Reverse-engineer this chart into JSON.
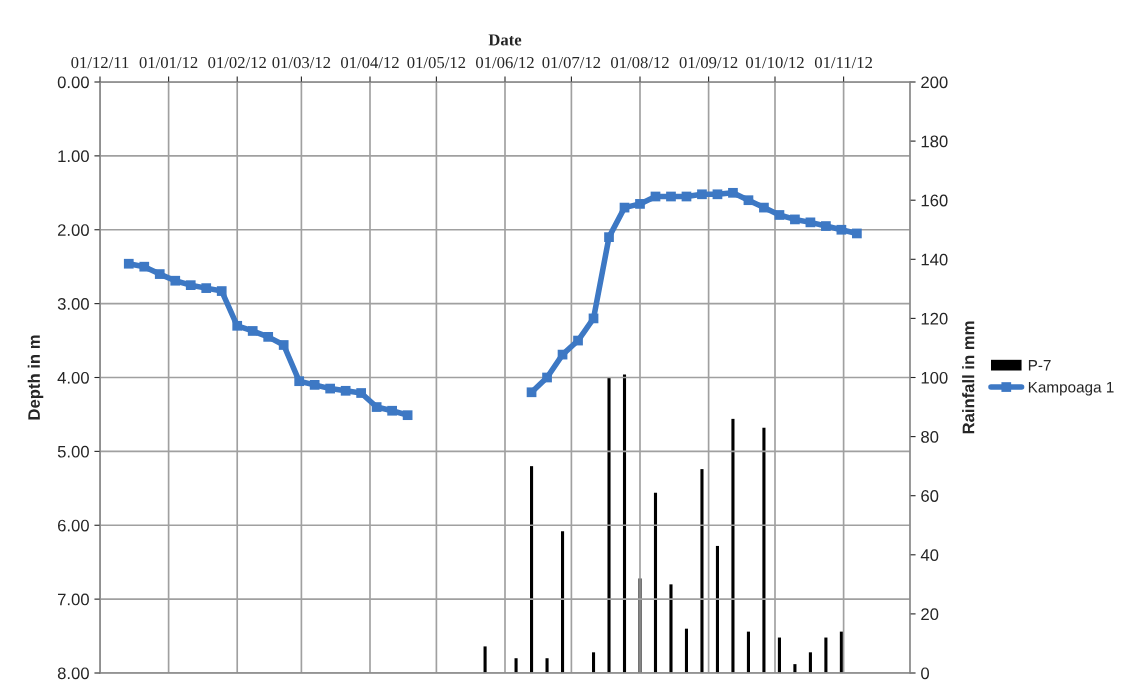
{
  "chart_data": {
    "type": "line",
    "xlabel": "Date",
    "ylabel": "Depth in m",
    "y2label": "Rainfall in mm",
    "xlim": [
      "2011-12-01",
      "2012-12-01"
    ],
    "xticks": [
      {
        "value": "2011-12-01",
        "label": "01/12/11"
      },
      {
        "value": "2012-01-01",
        "label": "01/01/12"
      },
      {
        "value": "2012-02-01",
        "label": "01/02/12"
      },
      {
        "value": "2012-03-01",
        "label": "01/03/12"
      },
      {
        "value": "2012-04-01",
        "label": "01/04/12"
      },
      {
        "value": "2012-05-01",
        "label": "01/05/12"
      },
      {
        "value": "2012-06-01",
        "label": "01/06/12"
      },
      {
        "value": "2012-07-01",
        "label": "01/07/12"
      },
      {
        "value": "2012-08-01",
        "label": "01/08/12"
      },
      {
        "value": "2012-09-01",
        "label": "01/09/12"
      },
      {
        "value": "2012-10-01",
        "label": "01/10/12"
      },
      {
        "value": "2012-11-01",
        "label": "01/11/12"
      }
    ],
    "ylim": [
      8,
      0
    ],
    "yticks": [
      {
        "value": 0,
        "label": "0.00"
      },
      {
        "value": 1,
        "label": "1.00"
      },
      {
        "value": 2,
        "label": "2.00"
      },
      {
        "value": 3,
        "label": "3.00"
      },
      {
        "value": 4,
        "label": "4.00"
      },
      {
        "value": 5,
        "label": "5.00"
      },
      {
        "value": 6,
        "label": "6.00"
      },
      {
        "value": 7,
        "label": "7.00"
      },
      {
        "value": 8,
        "label": "8.00"
      }
    ],
    "y2lim": [
      0,
      200
    ],
    "y2ticks": [
      0,
      20,
      40,
      60,
      80,
      100,
      120,
      140,
      160,
      180,
      200
    ],
    "grid": true,
    "legend": "right",
    "series": [
      {
        "name": "P-7",
        "type": "bar",
        "axis": "y2",
        "color": "#000000",
        "x": [
          "2012-05-23",
          "2012-06-06",
          "2012-06-13",
          "2012-06-20",
          "2012-06-27",
          "2012-07-11",
          "2012-07-18",
          "2012-07-25",
          "2012-08-01",
          "2012-08-08",
          "2012-08-15",
          "2012-08-22",
          "2012-08-29",
          "2012-09-05",
          "2012-09-12",
          "2012-09-19",
          "2012-09-26",
          "2012-10-03",
          "2012-10-10",
          "2012-10-17",
          "2012-10-24",
          "2012-10-31"
        ],
        "values": [
          9,
          5,
          70,
          5,
          48,
          7,
          100,
          101,
          32,
          61,
          30,
          15,
          69,
          43,
          86,
          14,
          83,
          12,
          3,
          7,
          12,
          14
        ]
      },
      {
        "name": "Kampoaga 1",
        "color": "#3d78c4",
        "marker": "square",
        "x": [
          "2011-12-14",
          "2011-12-21",
          "2011-12-28",
          "2012-01-04",
          "2012-01-11",
          "2012-01-18",
          "2012-01-25",
          "2012-02-01",
          "2012-02-08",
          "2012-02-15",
          "2012-02-22",
          "2012-02-29",
          "2012-03-07",
          "2012-03-14",
          "2012-03-21",
          "2012-03-28",
          "2012-04-04",
          "2012-04-11",
          "2012-04-18",
          "2012-04-25",
          "2012-05-02",
          "2012-05-09",
          "2012-05-16",
          "2012-05-23",
          "2012-05-30",
          "2012-06-06",
          "2012-06-13",
          "2012-06-20",
          "2012-06-27",
          "2012-07-04",
          "2012-07-11",
          "2012-07-18",
          "2012-07-25",
          "2012-08-01",
          "2012-08-08",
          "2012-08-15",
          "2012-08-22",
          "2012-08-29",
          "2012-09-05",
          "2012-09-12",
          "2012-09-19",
          "2012-09-26",
          "2012-10-03",
          "2012-10-10",
          "2012-10-17",
          "2012-10-24",
          "2012-10-31",
          "2012-11-07"
        ],
        "values": [
          2.46,
          2.5,
          2.6,
          2.69,
          2.75,
          2.79,
          2.83,
          3.3,
          3.37,
          3.45,
          3.56,
          4.05,
          4.1,
          4.15,
          4.18,
          4.21,
          4.4,
          4.45,
          4.51,
          null,
          null,
          null,
          null,
          null,
          null,
          null,
          4.2,
          4.0,
          3.69,
          3.5,
          3.2,
          2.1,
          1.7,
          1.65,
          1.55,
          1.55,
          1.55,
          1.52,
          1.52,
          1.5,
          1.6,
          1.7,
          1.8,
          1.86,
          1.9,
          1.95,
          2.0,
          2.05
        ]
      }
    ]
  }
}
